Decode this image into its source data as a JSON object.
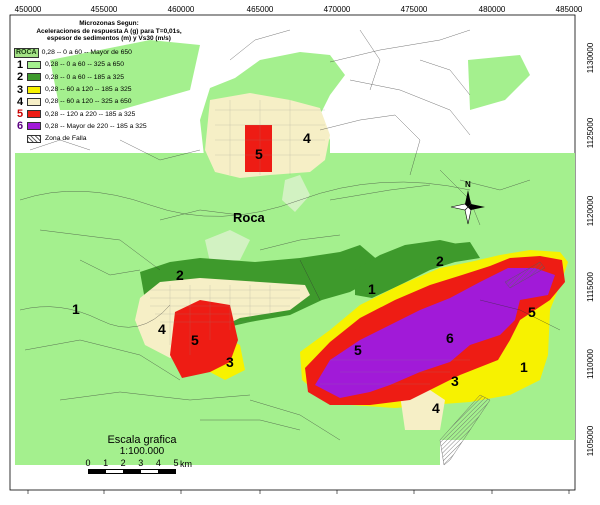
{
  "map": {
    "x_ticks": [
      "450000",
      "455000",
      "460000",
      "465000",
      "470000",
      "475000",
      "480000",
      "485000"
    ],
    "y_ticks": [
      "1130000",
      "1125000",
      "1120000",
      "1115000",
      "1110000",
      "1105000"
    ],
    "place_label": "Roca",
    "north_label": "N",
    "zone_labels": [
      "1",
      "1",
      "1",
      "2",
      "2",
      "3",
      "3",
      "4",
      "4",
      "4",
      "5",
      "5",
      "5",
      "5",
      "6"
    ]
  },
  "legend": {
    "title_lines": [
      "Microzonas Segun:",
      "Aceleraciones de respuesta A (g) para T=0,01s,",
      "espesor de sedimentos (m) y Vs30 (m/s)"
    ],
    "roca_tag": "ROCA",
    "roca_text": "0,28 -- 0 a 60 -- Mayor de 650",
    "items": [
      {
        "num": "1",
        "text": "0,28 -- 0 a 60 -- 325 a 650",
        "color": "#a4f08e"
      },
      {
        "num": "2",
        "text": "0,28 -- 0 a 60 -- 185 a 325",
        "color": "#3e9a2c"
      },
      {
        "num": "3",
        "text": "0,28 -- 60 a 120 -- 185 a 325",
        "color": "#f7f200"
      },
      {
        "num": "4",
        "text": "0,28 -- 60 a 120 -- 325 a 650",
        "color": "#f6efc6"
      },
      {
        "num": "5",
        "text": "0,28 -- 120 a 220 -- 185 a 325",
        "color": "#ee1c14"
      },
      {
        "num": "6",
        "text": "0,28 -- Mayor de 220 -- 185 a 325",
        "color": "#a11ad8"
      }
    ],
    "fault_text": "Zona de Falla",
    "number_colors": [
      "#000000",
      "#000000",
      "#000000",
      "#000000",
      "#c80000",
      "#5a0080"
    ]
  },
  "scale": {
    "title": "Escala grafica",
    "ratio": "1:100.000",
    "numbers": [
      "0",
      "1",
      "2",
      "3",
      "4",
      "5"
    ],
    "unit": "km"
  }
}
